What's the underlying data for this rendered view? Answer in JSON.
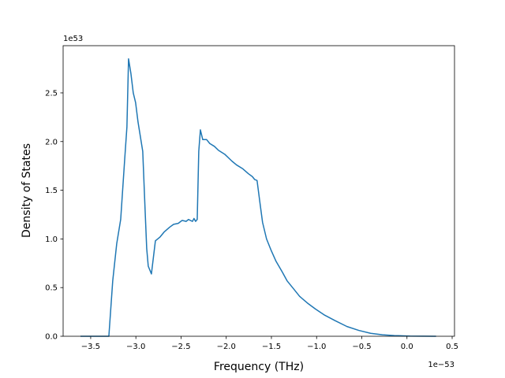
{
  "chart_data": {
    "type": "line",
    "x_label": "Frequency (THz)",
    "y_label": "Density of States",
    "x_offset_label": "1e−53",
    "y_offset_label": "1e53",
    "x": [
      -3.613,
      -3.299,
      -3.256,
      -3.212,
      -3.168,
      -3.125,
      -3.099,
      -3.081,
      -3.055,
      -3.029,
      -3.003,
      -2.976,
      -2.924,
      -2.898,
      -2.88,
      -2.863,
      -2.828,
      -2.784,
      -2.732,
      -2.688,
      -2.627,
      -2.583,
      -2.531,
      -2.488,
      -2.444,
      -2.418,
      -2.374,
      -2.357,
      -2.339,
      -2.321,
      -2.304,
      -2.286,
      -2.26,
      -2.217,
      -2.182,
      -2.13,
      -2.086,
      -2.017,
      -1.938,
      -1.886,
      -1.816,
      -1.755,
      -1.711,
      -1.685,
      -1.659,
      -1.624,
      -1.598,
      -1.554,
      -1.502,
      -1.449,
      -1.38,
      -1.327,
      -1.257,
      -1.188,
      -1.1,
      -1.013,
      -0.917,
      -0.795,
      -0.664,
      -0.533,
      -0.402,
      -0.271,
      -0.141,
      0.034,
      0.322
    ],
    "series": [
      {
        "color": "#1f77b4",
        "values": [
          0,
          0,
          0.57,
          0.95,
          1.2,
          1.8,
          2.15,
          2.85,
          2.7,
          2.5,
          2.4,
          2.2,
          1.9,
          1.3,
          0.9,
          0.72,
          0.64,
          0.98,
          1.02,
          1.07,
          1.12,
          1.15,
          1.16,
          1.19,
          1.18,
          1.2,
          1.18,
          1.21,
          1.18,
          1.2,
          1.9,
          2.12,
          2.02,
          2.02,
          1.98,
          1.95,
          1.91,
          1.87,
          1.8,
          1.76,
          1.72,
          1.67,
          1.64,
          1.61,
          1.6,
          1.35,
          1.17,
          1.0,
          0.88,
          0.77,
          0.66,
          0.57,
          0.49,
          0.41,
          0.34,
          0.28,
          0.22,
          0.16,
          0.1,
          0.06,
          0.03,
          0.015,
          0.007,
          0.002,
          0
        ]
      }
    ],
    "xlim": [
      -3.805,
      0.526
    ],
    "xticks": [
      {
        "value": -3.5,
        "label": "−3.5"
      },
      {
        "value": -3.0,
        "label": "−3.0"
      },
      {
        "value": -2.5,
        "label": "−2.5"
      },
      {
        "value": -2.0,
        "label": "−2.0"
      },
      {
        "value": -1.5,
        "label": "−1.5"
      },
      {
        "value": -1.0,
        "label": "−1.0"
      },
      {
        "value": -0.5,
        "label": "−0.5"
      },
      {
        "value": 0,
        "label": "0.0"
      },
      0.5
    ],
    "ylim": [
      0,
      2.985
    ],
    "yticks": [
      {
        "value": 0,
        "label": "0.0"
      },
      0.5,
      {
        "value": 1,
        "label": "1.0"
      },
      1.5,
      {
        "value": 2,
        "label": "2.0"
      },
      2.5
    ],
    "grid": false
  }
}
